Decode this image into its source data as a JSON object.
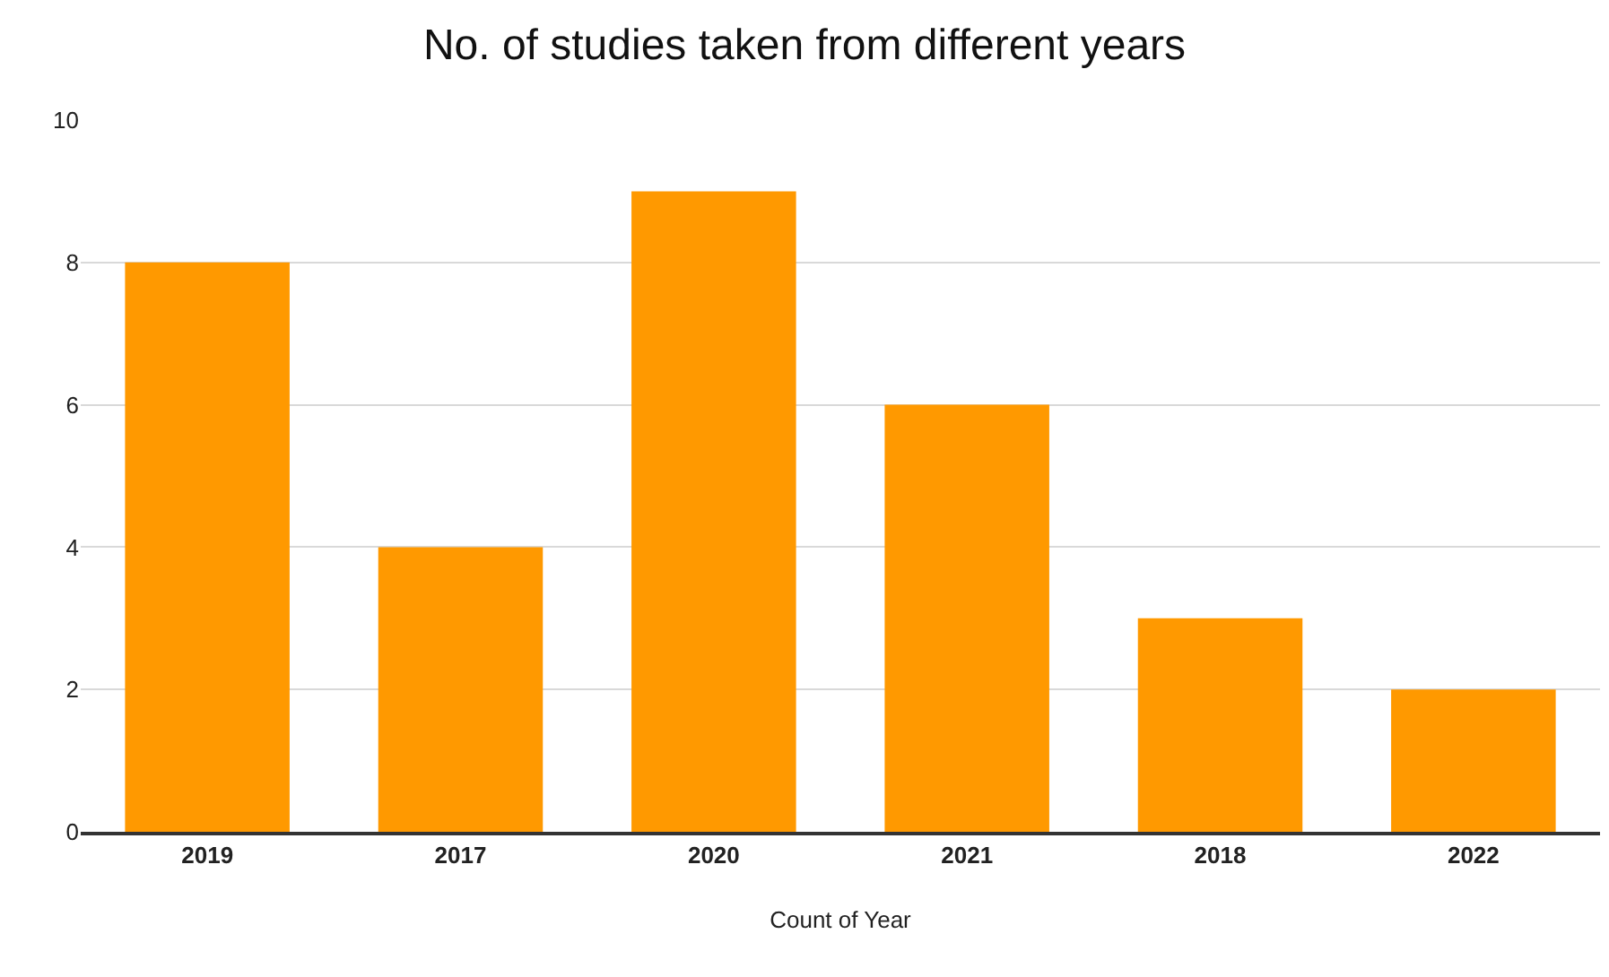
{
  "chart_data": {
    "type": "bar",
    "title": "No. of studies taken from different years",
    "xlabel": "Count of Year",
    "categories": [
      "2019",
      "2017",
      "2020",
      "2021",
      "2018",
      "2022"
    ],
    "values": [
      8,
      4,
      9,
      6,
      3,
      2
    ],
    "color": "#ff9900",
    "ylim": [
      0,
      10
    ],
    "yticks": [
      0,
      2,
      4,
      6,
      8,
      10
    ],
    "grid": "y",
    "legend": false
  }
}
